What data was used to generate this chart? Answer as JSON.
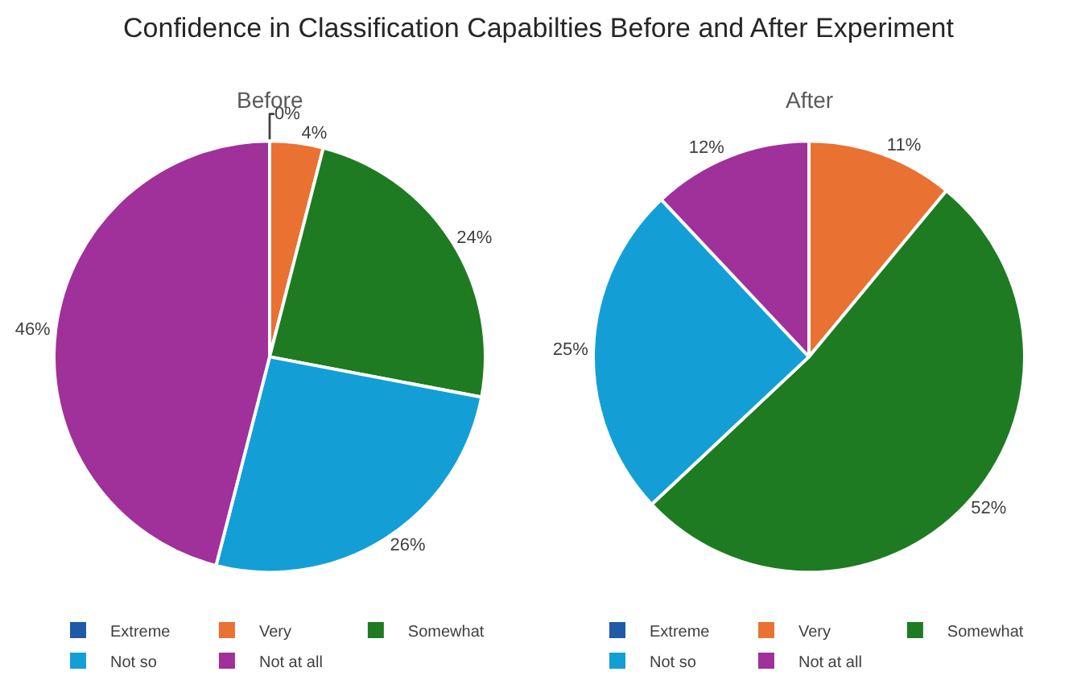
{
  "chart_data": [
    {
      "type": "pie",
      "title": "Confidence in Classification Capabilties Before and After Experiment",
      "subtitle": "Before",
      "categories": [
        "Extreme",
        "Very",
        "Somewhat",
        "Not so",
        "Not at all"
      ],
      "values": [
        0,
        4,
        24,
        26,
        46
      ],
      "value_labels": [
        "0%",
        "4%",
        "24%",
        "26%",
        "46%"
      ],
      "colors": [
        "#1f5aa6",
        "#e97132",
        "#1e7b22",
        "#139fd6",
        "#a0309a"
      ],
      "legend": "bottom"
    },
    {
      "type": "pie",
      "subtitle": "After",
      "categories": [
        "Extreme",
        "Very",
        "Somewhat",
        "Not so",
        "Not at all"
      ],
      "values": [
        0,
        11,
        52,
        25,
        12
      ],
      "value_labels": [
        null,
        "11%",
        "52%",
        "25%",
        "12%"
      ],
      "colors": [
        "#1f5aa6",
        "#e97132",
        "#1e7b22",
        "#139fd6",
        "#a0309a"
      ],
      "legend": "bottom"
    }
  ]
}
